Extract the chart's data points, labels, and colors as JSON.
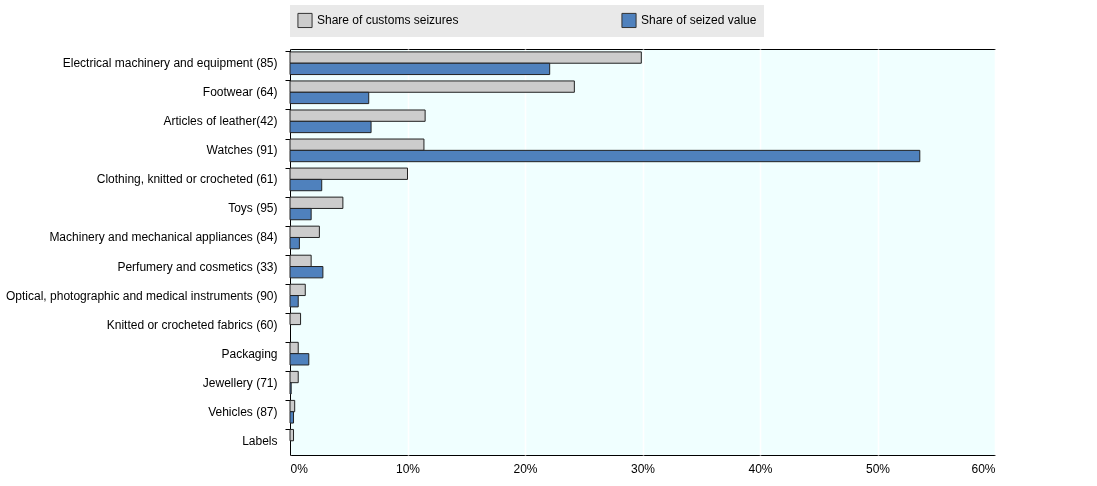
{
  "chart_data": {
    "type": "bar",
    "orientation": "horizontal",
    "legend": "top",
    "categories": [
      "Electrical machinery and equipment (85)",
      "Footwear (64)",
      "Articles of leather(42)",
      "Watches (91)",
      "Clothing, knitted or crocheted (61)",
      "Toys (95)",
      "Machinery and mechanical appliances (84)",
      "Perfumery and cosmetics (33)",
      "Optical, photographic and medical instruments (90)",
      "Knitted or crocheted fabrics (60)",
      "Packaging",
      "Jewellery (71)",
      "Vehicles (87)",
      "Labels"
    ],
    "series": [
      {
        "name": "Share of customs seizures",
        "color": "#cccccc",
        "values": [
          29.9,
          24.2,
          11.5,
          11.4,
          10.0,
          4.5,
          2.5,
          1.8,
          1.3,
          0.9,
          0.7,
          0.7,
          0.4,
          0.3
        ]
      },
      {
        "name": "Share of seized value",
        "color": "#4f81bd",
        "values": [
          22.1,
          6.7,
          6.9,
          53.6,
          2.7,
          1.8,
          0.8,
          2.8,
          0.7,
          null,
          1.6,
          0.1,
          0.3,
          null
        ]
      }
    ],
    "xlim": [
      0,
      60
    ],
    "xticks": [
      {
        "value": 0,
        "label": "0%"
      },
      {
        "value": 10,
        "label": "10%"
      },
      {
        "value": 20,
        "label": "20%"
      },
      {
        "value": 30,
        "label": "30%"
      },
      {
        "value": 40,
        "label": "40%"
      },
      {
        "value": 50,
        "label": "50%"
      },
      {
        "value": 60,
        "label": "60%"
      }
    ],
    "grid": "x"
  }
}
